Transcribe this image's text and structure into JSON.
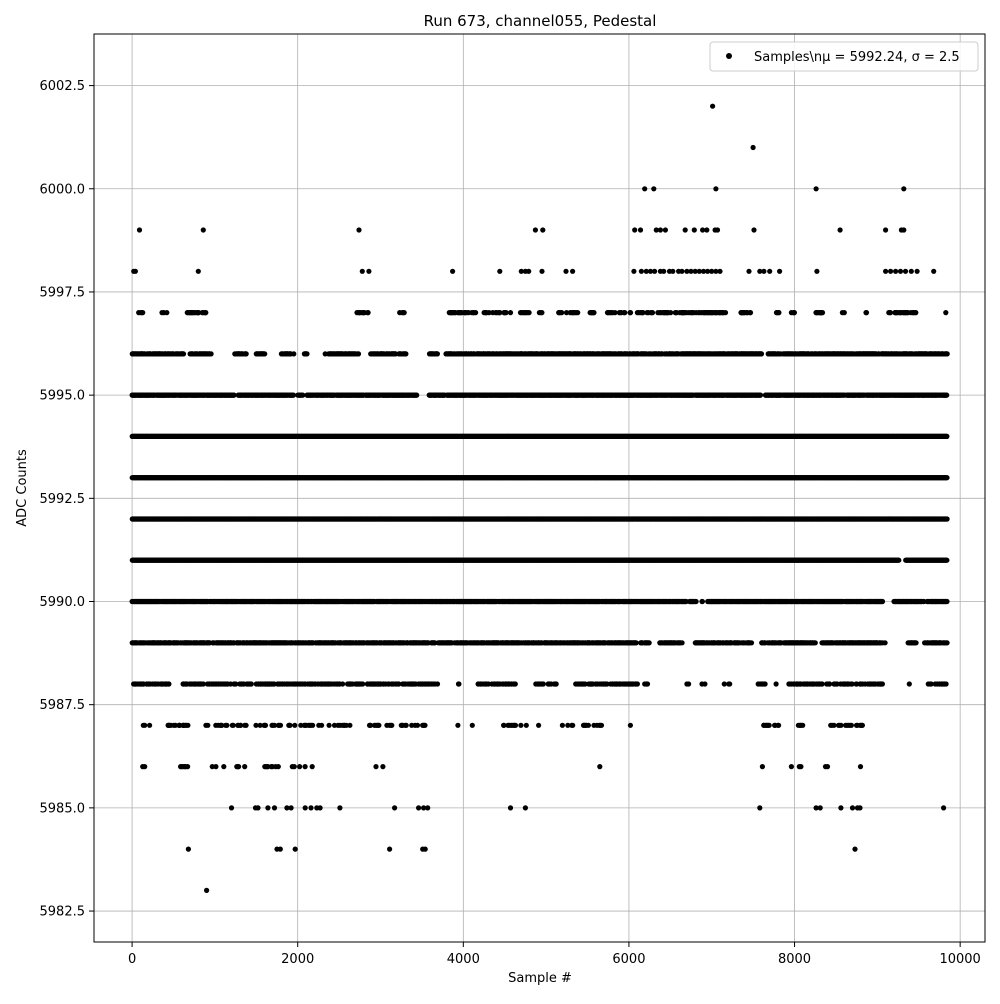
{
  "chart_data": {
    "type": "scatter",
    "title": "Run 673, channel055, Pedestal",
    "xlabel": "Sample #",
    "ylabel": "ADC Counts",
    "xlim": [
      -460,
      10300
    ],
    "ylim": [
      5981.75,
      6003.75
    ],
    "x_ticks": [
      0,
      2000,
      4000,
      6000,
      8000,
      10000
    ],
    "x_tick_labels": [
      "0",
      "2000",
      "4000",
      "6000",
      "8000",
      "10000"
    ],
    "y_ticks": [
      5982.5,
      5985.0,
      5987.5,
      5990.0,
      5992.5,
      5995.0,
      5997.5,
      6000.0,
      6002.5
    ],
    "y_tick_labels": [
      "5982.5",
      "5985.0",
      "5987.5",
      "5990.0",
      "5992.5",
      "5995.0",
      "5997.5",
      "6000.0",
      "6002.5"
    ],
    "grid": true,
    "legend_position": "top-right",
    "series": [
      {
        "name": "Samples\\nμ = 5992.24, σ = 2.5",
        "color": "#000000",
        "marker": "circle",
        "x_range": [
          0,
          9840
        ],
        "levels": [
          {
            "y": 5983,
            "x": [
              900
            ]
          },
          {
            "y": 5984,
            "x": [
              680,
              1750,
              1790,
              1970,
              3110,
              3510,
              3540,
              8730
            ]
          },
          {
            "y": 5985,
            "x": [
              1200,
              1490,
              1520,
              1640,
              1720,
              1870,
              1920,
              2090,
              2160,
              2230,
              2270,
              2510,
              3170,
              3460,
              3520,
              3570,
              4570,
              4750,
              7580,
              8260,
              8310,
              8560,
              8700,
              8760,
              8790,
              9800
            ]
          },
          {
            "y": 6002,
            "x": [
              7010
            ]
          },
          {
            "y": 6001,
            "x": [
              7500
            ]
          },
          {
            "y": 6000,
            "x": [
              6190,
              6300,
              7050,
              8260,
              9320
            ]
          },
          {
            "y": 5999,
            "x": [
              90,
              860,
              2740,
              4870,
              4960,
              6070,
              6140,
              6330,
              6380,
              6440,
              6680,
              6790,
              6890,
              6940,
              7040,
              7070,
              7510,
              8550,
              9100,
              9290,
              9320
            ]
          },
          {
            "y": 5998,
            "x": [
              20,
              40,
              800,
              2780,
              2860,
              3870,
              4440,
              4700,
              4750,
              4790,
              4950,
              5240,
              5320,
              6060
            ]
          }
        ],
        "dense_levels": [
          {
            "y": 5986,
            "segments": [
              [
                120,
                240
              ],
              [
                560,
                700
              ],
              [
                950,
                1140
              ],
              [
                1250,
                1420
              ],
              [
                1590,
                2210
              ],
              [
                2620,
                2640
              ],
              [
                2890,
                3060
              ],
              [
                3120,
                3130
              ],
              [
                3360,
                3400
              ],
              [
                3540,
                3560
              ],
              [
                3660,
                3670
              ],
              [
                5060,
                5070
              ],
              [
                5640,
                5660
              ],
              [
                7600,
                7650
              ],
              [
                7960,
                8100
              ],
              [
                8360,
                8420
              ],
              [
                8790,
                8830
              ],
              [
                8980,
                9000
              ]
            ],
            "density": 0.11
          },
          {
            "y": 5987,
            "segments": [
              [
                120,
                230
              ],
              [
                420,
                720
              ],
              [
                890,
                2660
              ],
              [
                2860,
                3150
              ],
              [
                3230,
                3580
              ],
              [
                3910,
                3960
              ],
              [
                4100,
                4110
              ],
              [
                4460,
                4760
              ],
              [
                4900,
                4910
              ],
              [
                5170,
                5320
              ],
              [
                5450,
                5510
              ],
              [
                5570,
                5710
              ],
              [
                6010,
                6020
              ],
              [
                7370,
                7380
              ],
              [
                7620,
                7830
              ],
              [
                8020,
                8100
              ],
              [
                8410,
                8820
              ],
              [
                8990,
                9010
              ],
              [
                9640,
                9650
              ]
            ],
            "density": 0.22
          },
          {
            "y": 5988,
            "segments": [
              [
                0,
                470
              ],
              [
                590,
                860
              ],
              [
                910,
                2800
              ],
              [
                2840,
                3690
              ],
              [
                3940,
                3960
              ],
              [
                4170,
                4630
              ],
              [
                4850,
                5120
              ],
              [
                5350,
                6110
              ],
              [
                6170,
                6240
              ],
              [
                6700,
                6720
              ],
              [
                6880,
                6920
              ],
              [
                7150,
                7230
              ],
              [
                7560,
                7650
              ],
              [
                7770,
                7780
              ],
              [
                7930,
                8640
              ],
              [
                8640,
                9060
              ],
              [
                9380,
                9390
              ],
              [
                9590,
                9840
              ]
            ],
            "density": 0.4
          },
          {
            "y": 5989,
            "segments": [
              [
                0,
                3860
              ],
              [
                3890,
                6090
              ],
              [
                6140,
                6250
              ],
              [
                6370,
                6650
              ],
              [
                6800,
                7480
              ],
              [
                7600,
                8260
              ],
              [
                8330,
                9100
              ],
              [
                9370,
                9470
              ],
              [
                9570,
                9840
              ]
            ],
            "density": 0.7
          },
          {
            "y": 5990,
            "segments": [
              [
                0,
                6690
              ],
              [
                6730,
                6810
              ],
              [
                6880,
                6890
              ],
              [
                6950,
                9070
              ],
              [
                9200,
                9560
              ],
              [
                9600,
                9840
              ]
            ],
            "density": 0.9
          },
          {
            "y": 5991,
            "segments": [
              [
                0,
                9260
              ],
              [
                9340,
                9840
              ]
            ],
            "density": 1.0
          },
          {
            "y": 5992,
            "segments": [
              [
                0,
                9840
              ]
            ],
            "density": 1.0
          },
          {
            "y": 5993,
            "segments": [
              [
                0,
                9840
              ]
            ],
            "density": 1.0
          },
          {
            "y": 5994,
            "segments": [
              [
                0,
                9840
              ]
            ],
            "density": 1.0
          },
          {
            "y": 5995,
            "segments": [
              [
                0,
                1230
              ],
              [
                1280,
                1950
              ],
              [
                2000,
                2060
              ],
              [
                2110,
                3440
              ],
              [
                3580,
                7590
              ],
              [
                7640,
                9840
              ]
            ],
            "density": 0.85
          },
          {
            "y": 5996,
            "segments": [
              [
                0,
                620
              ],
              [
                700,
                960
              ],
              [
                1240,
                1380
              ],
              [
                1480,
                1600
              ],
              [
                1800,
                1950
              ],
              [
                2080,
                2110
              ],
              [
                2330,
                2740
              ],
              [
                2880,
                3180
              ],
              [
                3220,
                3320
              ],
              [
                3590,
                3690
              ],
              [
                3790,
                7600
              ],
              [
                7680,
                9840
              ]
            ],
            "density": 0.7
          },
          {
            "y": 5997,
            "segments": [
              [
                80,
                130
              ],
              [
                340,
                440
              ],
              [
                660,
                910
              ],
              [
                2050,
                2060
              ],
              [
                2680,
                2880
              ],
              [
                3230,
                3290
              ],
              [
                3590,
                3600
              ],
              [
                3830,
                4160
              ],
              [
                4250,
                4580
              ],
              [
                4690,
                4840
              ],
              [
                4900,
                4950
              ],
              [
                5120,
                5390
              ],
              [
                5530,
                5580
              ],
              [
                5740,
                5950
              ],
              [
                6000,
                7180
              ],
              [
                7340,
                7480
              ],
              [
                7750,
                7830
              ],
              [
                7960,
                8000
              ],
              [
                8240,
                8340
              ],
              [
                8420,
                8440
              ],
              [
                8570,
                8600
              ],
              [
                8850,
                8870
              ],
              [
                9120,
                9470
              ],
              [
                9820,
                9830
              ]
            ],
            "density": 0.35
          }
        ],
        "extra_points": [
          {
            "y": 5998,
            "x": [
              6150,
              6210,
              6260,
              6310,
              6380,
              6420,
              6490,
              6530,
              6600,
              6640,
              6700,
              6750,
              6800,
              6850,
              6900,
              6950,
              7000,
              7050,
              7100,
              7450,
              7580,
              7630,
              7700,
              7820,
              8270,
              9100,
              9160,
              9220,
              9280,
              9340,
              9410,
              9480,
              9680
            ]
          }
        ]
      }
    ]
  }
}
